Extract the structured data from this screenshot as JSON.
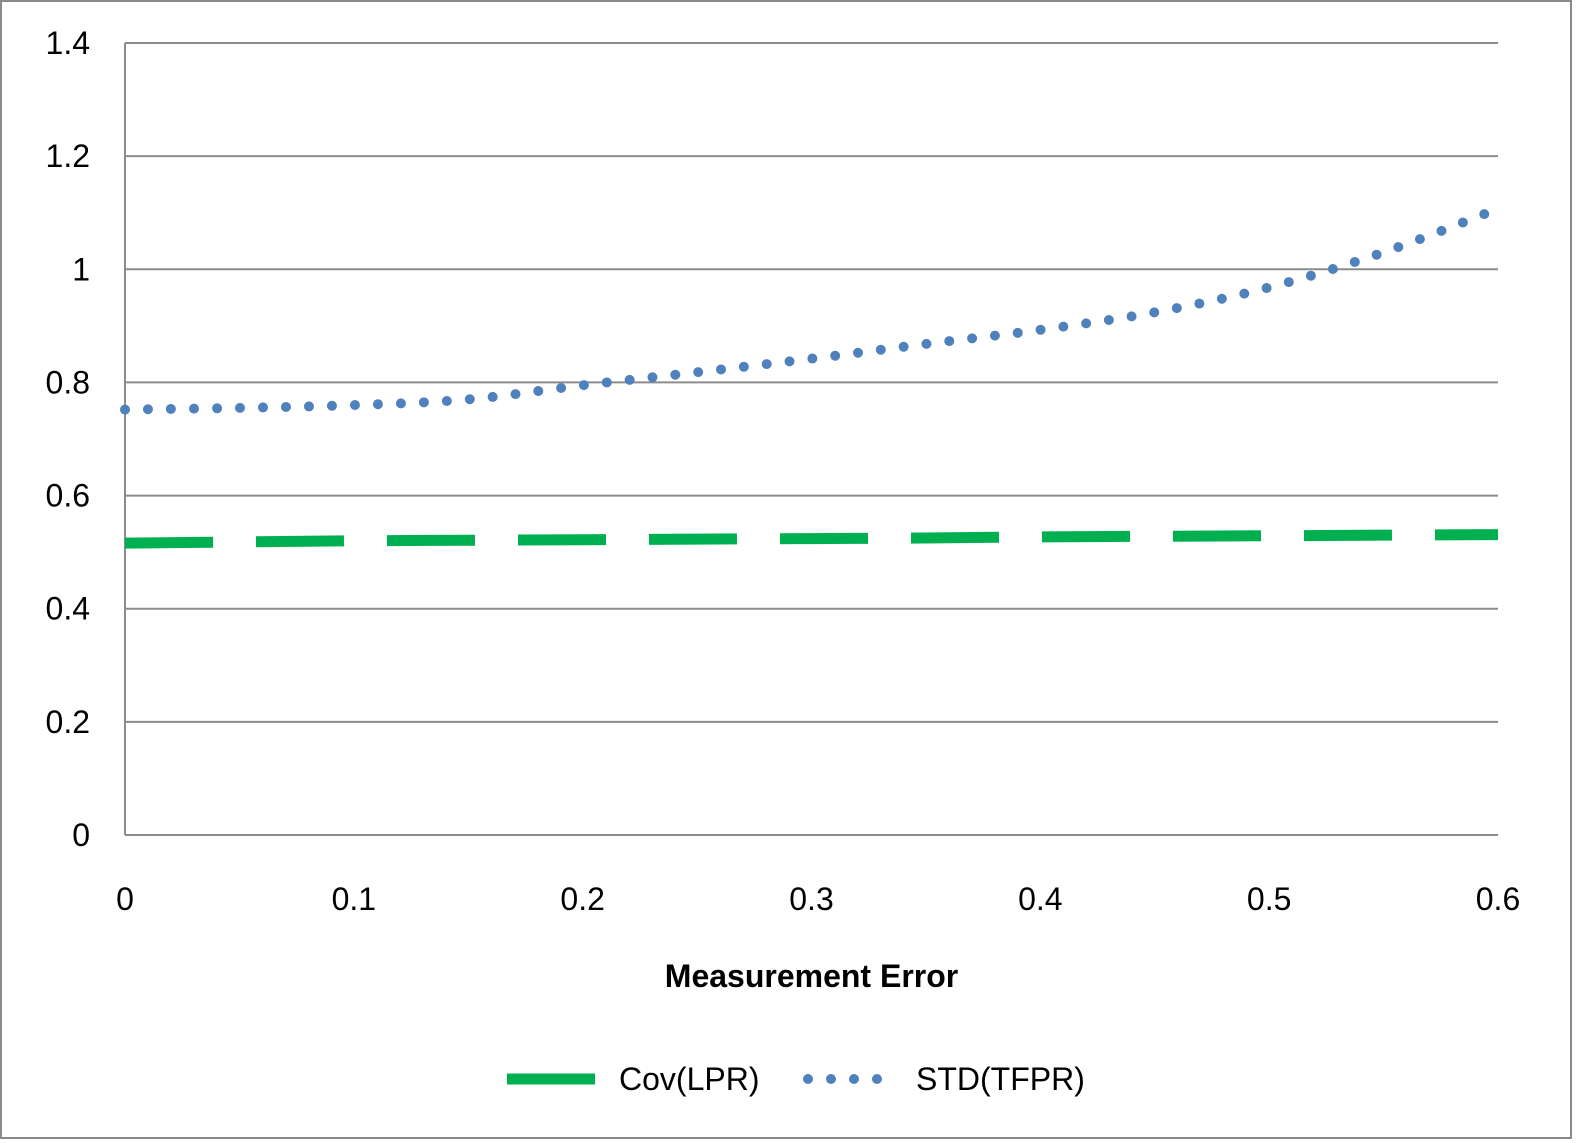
{
  "chart_data": {
    "type": "line",
    "title": "",
    "xlabel": "Measurement Error",
    "ylabel": "",
    "xlim": [
      0,
      0.6
    ],
    "ylim": [
      0,
      1.4
    ],
    "x_ticks": [
      "0",
      "0.1",
      "0.2",
      "0.3",
      "0.4",
      "0.5",
      "0.6"
    ],
    "y_ticks": [
      "0",
      "0.2",
      "0.4",
      "0.6",
      "0.8",
      "1",
      "1.2",
      "1.4"
    ],
    "grid": "horizontal",
    "legend_position": "bottom",
    "x": [
      0,
      0.05,
      0.1,
      0.15,
      0.2,
      0.25,
      0.3,
      0.35,
      0.4,
      0.45,
      0.5,
      0.55,
      0.6
    ],
    "series": [
      {
        "name": "Cov(LPR)",
        "color": "#00b050",
        "style": "dashed",
        "values": [
          0.516,
          0.518,
          0.52,
          0.521,
          0.522,
          0.523,
          0.524,
          0.525,
          0.527,
          0.528,
          0.529,
          0.53,
          0.531
        ]
      },
      {
        "name": "STD(TFPR)",
        "color": "#4f81bd",
        "style": "dotted",
        "values": [
          0.752,
          0.755,
          0.76,
          0.77,
          0.795,
          0.818,
          0.842,
          0.868,
          0.893,
          0.924,
          0.968,
          1.03,
          1.107
        ]
      }
    ]
  }
}
